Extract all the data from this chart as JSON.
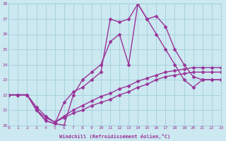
{
  "xlabel": "Windchill (Refroidissement éolien,°C)",
  "xlim": [
    0,
    23
  ],
  "ylim": [
    20,
    28
  ],
  "xticks": [
    0,
    1,
    2,
    3,
    4,
    5,
    6,
    7,
    8,
    9,
    10,
    11,
    12,
    13,
    14,
    15,
    16,
    17,
    18,
    19,
    20,
    21,
    22,
    23
  ],
  "yticks": [
    20,
    21,
    22,
    23,
    24,
    25,
    26,
    27,
    28
  ],
  "background_color": "#cce8f0",
  "grid_color": "#99ccd9",
  "line_color": "#993399",
  "marker": "D",
  "markersize": 2.5,
  "linewidth": 1.0,
  "curves": [
    {
      "x": [
        0,
        1,
        2,
        3,
        4,
        5,
        6,
        7,
        8,
        9,
        10,
        11,
        12,
        13,
        14,
        15,
        16,
        17,
        18,
        19,
        20,
        21,
        22,
        23
      ],
      "y": [
        22,
        22,
        22,
        21,
        20.3,
        20.1,
        20.0,
        22.0,
        23.0,
        23.5,
        24.0,
        25.5,
        26.0,
        24.0,
        28.0,
        27.0,
        26.0,
        25.0,
        24.0,
        23.0,
        22.5,
        23.0,
        23.0,
        23.0
      ]
    },
    {
      "x": [
        0,
        1,
        2,
        3,
        4,
        5,
        6,
        7,
        8,
        9,
        10,
        11,
        12,
        13,
        14,
        15,
        16,
        17,
        18,
        19,
        20,
        21,
        22,
        23
      ],
      "y": [
        22,
        22,
        22,
        21,
        20.3,
        20.1,
        21.5,
        22.2,
        22.5,
        23.0,
        23.5,
        27.0,
        26.8,
        27.0,
        28.0,
        27.0,
        27.2,
        26.5,
        25.0,
        24.0,
        23.2,
        23.0,
        23.0,
        23.0
      ]
    },
    {
      "x": [
        0,
        1,
        2,
        3,
        4,
        5,
        6,
        7,
        8,
        9,
        10,
        11,
        12,
        13,
        14,
        15,
        16,
        17,
        18,
        19,
        20,
        21,
        22,
        23
      ],
      "y": [
        22,
        22,
        22,
        21.0,
        20.5,
        20.2,
        20.5,
        20.8,
        21.0,
        21.3,
        21.5,
        21.7,
        22.0,
        22.2,
        22.5,
        22.7,
        23.0,
        23.2,
        23.3,
        23.4,
        23.5,
        23.5,
        23.5,
        23.5
      ]
    },
    {
      "x": [
        0,
        1,
        2,
        3,
        4,
        5,
        6,
        7,
        8,
        9,
        10,
        11,
        12,
        13,
        14,
        15,
        16,
        17,
        18,
        19,
        20,
        21,
        22,
        23
      ],
      "y": [
        22,
        22,
        22,
        21.2,
        20.6,
        20.2,
        20.6,
        21.0,
        21.3,
        21.6,
        21.9,
        22.1,
        22.4,
        22.6,
        22.9,
        23.1,
        23.3,
        23.5,
        23.6,
        23.7,
        23.8,
        23.8,
        23.8,
        23.8
      ]
    }
  ]
}
